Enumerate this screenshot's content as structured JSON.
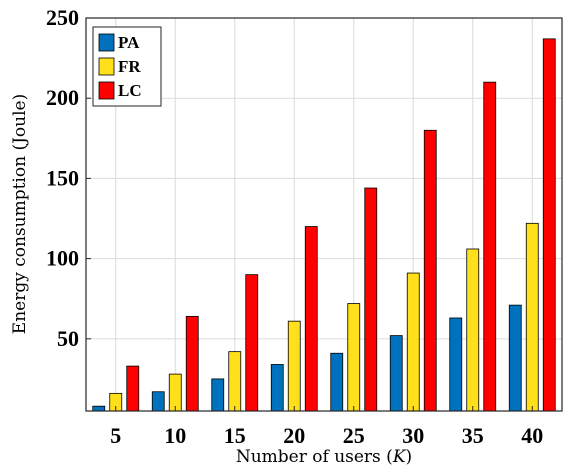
{
  "chart_data": {
    "type": "bar",
    "title": "",
    "xlabel": "Number of users (",
    "xlabel_var": "K",
    "xlabel_close": ")",
    "ylabel": "Energy consumption (Joule)",
    "categories": [
      "5",
      "10",
      "15",
      "20",
      "25",
      "30",
      "35",
      "40"
    ],
    "ylim": [
      5,
      250
    ],
    "yticks": [
      50,
      100,
      150,
      200,
      250
    ],
    "grid": true,
    "legend_position": "top-left",
    "series": [
      {
        "name": "PA",
        "color": "#0072BD",
        "values": [
          8,
          17,
          25,
          34,
          41,
          52,
          63,
          71
        ]
      },
      {
        "name": "FR",
        "color": "#FFE01A",
        "values": [
          16,
          28,
          42,
          61,
          72,
          91,
          106,
          122
        ]
      },
      {
        "name": "LC",
        "color": "#FF0000",
        "values": [
          33,
          64,
          90,
          120,
          144,
          180,
          210,
          237
        ]
      }
    ]
  }
}
